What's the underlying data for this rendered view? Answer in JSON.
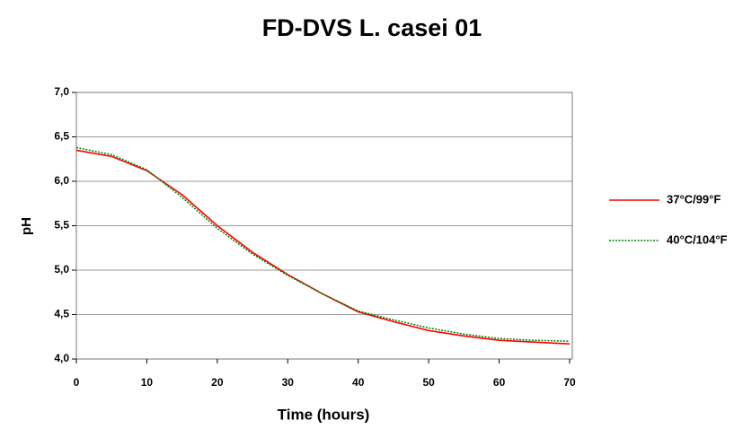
{
  "chart_data": {
    "type": "line",
    "title": "FD-DVS L. casei 01",
    "x_label": "Time (hours)",
    "y_label": "pH",
    "x": [
      0,
      5,
      10,
      15,
      20,
      25,
      30,
      35,
      40,
      45,
      50,
      55,
      60,
      65,
      70
    ],
    "series": [
      {
        "name": "37°C/99°F",
        "color": "#ff0000",
        "dash": false,
        "values": [
          6.35,
          6.28,
          6.12,
          5.85,
          5.5,
          5.2,
          4.95,
          4.73,
          4.53,
          4.42,
          4.32,
          4.26,
          4.21,
          4.19,
          4.17
        ]
      },
      {
        "name": "40°C/104°F",
        "color": "#008000",
        "dash": true,
        "values": [
          6.38,
          6.3,
          6.13,
          5.82,
          5.47,
          5.18,
          4.94,
          4.73,
          4.54,
          4.44,
          4.35,
          4.28,
          4.23,
          4.21,
          4.2
        ]
      }
    ],
    "xlim": [
      0,
      70
    ],
    "xticks": [
      0,
      10,
      20,
      30,
      40,
      50,
      60,
      70
    ],
    "ylim": [
      4,
      7
    ],
    "yticks": [
      {
        "value": 4,
        "label": "4,0"
      },
      {
        "value": 4.5,
        "label": "4,5"
      },
      {
        "value": 5,
        "label": "5,0"
      },
      {
        "value": 5.5,
        "label": "5,5"
      },
      {
        "value": 6,
        "label": "6,0"
      },
      {
        "value": 6.5,
        "label": "6,5"
      },
      {
        "value": 7,
        "label": "7,0"
      }
    ],
    "grid": true,
    "legend": "right"
  }
}
